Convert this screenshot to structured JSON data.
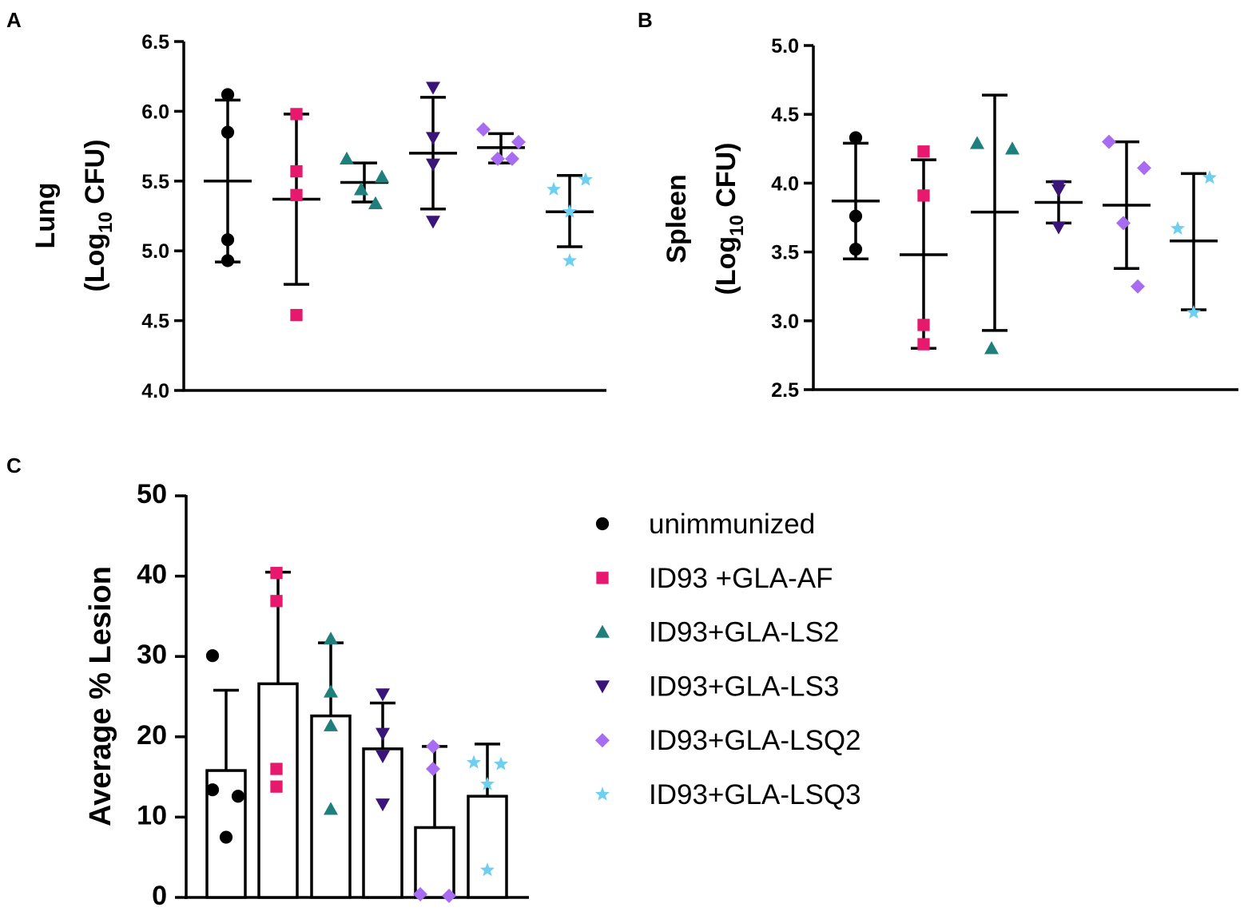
{
  "chart_data": [
    {
      "panel": "A",
      "type": "scatter",
      "ylabel_line1": "Lung",
      "ylabel_line2_prefix": "(Log",
      "ylabel_line2_sub": "10",
      "ylabel_line2_suffix": " CFU)",
      "ylim": [
        4.0,
        6.5
      ],
      "yticks": [
        "4.0",
        "4.5",
        "5.0",
        "5.5",
        "6.0",
        "6.5"
      ],
      "groups": [
        {
          "name": "unimmunized",
          "points": [
            6.12,
            5.85,
            5.08,
            4.93
          ],
          "mean": 5.5,
          "err_low": 4.92,
          "err_high": 6.08
        },
        {
          "name": "ID93 +GLA-AF",
          "points": [
            5.98,
            5.57,
            5.4,
            4.54
          ],
          "mean": 5.37,
          "err_low": 4.76,
          "err_high": 5.98
        },
        {
          "name": "ID93+GLA-LS2",
          "points": [
            5.66,
            5.53,
            5.44,
            5.34
          ],
          "mean": 5.49,
          "err_low": 5.35,
          "err_high": 5.63
        },
        {
          "name": "ID93+GLA-LS3",
          "points": [
            6.17,
            5.81,
            5.62,
            5.21
          ],
          "mean": 5.7,
          "err_low": 5.3,
          "err_high": 6.1
        },
        {
          "name": "ID93+GLA-LSQ2",
          "points": [
            5.87,
            5.78,
            5.66,
            5.66
          ],
          "mean": 5.74,
          "err_low": 5.63,
          "err_high": 5.84
        },
        {
          "name": "ID93+GLA-LSQ3",
          "points": [
            5.51,
            5.44,
            5.28,
            4.93
          ],
          "mean": 5.28,
          "err_low": 5.03,
          "err_high": 5.54
        }
      ]
    },
    {
      "panel": "B",
      "type": "scatter",
      "ylabel_line1": "Spleen",
      "ylabel_line2_prefix": "(Log",
      "ylabel_line2_sub": "10",
      "ylabel_line2_suffix": " CFU)",
      "ylim": [
        2.5,
        5.0
      ],
      "yticks": [
        "2.5",
        "3.0",
        "3.5",
        "4.0",
        "4.5",
        "5.0"
      ],
      "groups": [
        {
          "name": "unimmunized",
          "points": [
            4.33,
            3.76,
            3.52
          ],
          "mean": 3.87,
          "err_low": 3.45,
          "err_high": 4.29
        },
        {
          "name": "ID93 +GLA-AF",
          "points": [
            4.23,
            3.91,
            2.97,
            2.83
          ],
          "mean": 3.48,
          "err_low": 2.8,
          "err_high": 4.17
        },
        {
          "name": "ID93+GLA-LS2",
          "points": [
            4.29,
            4.25,
            2.8
          ],
          "mean": 3.79,
          "err_low": 2.93,
          "err_high": 4.64
        },
        {
          "name": "ID93+GLA-LS3",
          "points": [
            3.98,
            3.98,
            3.95,
            3.68
          ],
          "mean": 3.86,
          "err_low": 3.71,
          "err_high": 4.01
        },
        {
          "name": "ID93+GLA-LSQ2",
          "points": [
            4.3,
            4.11,
            3.71,
            3.25
          ],
          "mean": 3.84,
          "err_low": 3.38,
          "err_high": 4.3
        },
        {
          "name": "ID93+GLA-LSQ3",
          "points": [
            4.04,
            3.67,
            3.06
          ],
          "mean": 3.58,
          "err_low": 3.08,
          "err_high": 4.07
        }
      ]
    },
    {
      "panel": "C",
      "type": "bar",
      "ylabel": "Average % Lesion",
      "ylim": [
        0,
        50
      ],
      "yticks": [
        "0",
        "10",
        "20",
        "30",
        "40",
        "50"
      ],
      "groups": [
        {
          "name": "unimmunized",
          "value": 15.8,
          "err_high": 25.8,
          "points": [
            30.1,
            13.4,
            12.6,
            7.5
          ]
        },
        {
          "name": "ID93 +GLA-AF",
          "value": 26.6,
          "err_high": 40.5,
          "points": [
            40.4,
            36.9,
            16.0,
            13.8
          ]
        },
        {
          "name": "ID93+GLA-LS2",
          "value": 22.6,
          "err_high": 31.7,
          "points": [
            32.2,
            25.6,
            21.4,
            11.0
          ]
        },
        {
          "name": "ID93+GLA-LS3",
          "value": 18.5,
          "err_high": 24.2,
          "points": [
            25.3,
            20.4,
            17.6,
            11.6
          ]
        },
        {
          "name": "ID93+GLA-LSQ2",
          "value": 8.7,
          "err_high": 18.8,
          "points": [
            18.8,
            16.0,
            0.4,
            0.2
          ]
        },
        {
          "name": "ID93+GLA-LSQ3",
          "value": 12.6,
          "err_high": 19.1,
          "points": [
            16.8,
            16.6,
            14.1,
            3.4
          ]
        }
      ]
    }
  ],
  "legend": [
    {
      "label": "unimmunized",
      "marker": "circle",
      "color": "#000000"
    },
    {
      "label": "ID93 +GLA-AF",
      "marker": "square",
      "color": "#E6196D"
    },
    {
      "label": "ID93+GLA-LS2",
      "marker": "triangle-up",
      "color": "#1E7F7D"
    },
    {
      "label": "ID93+GLA-LS3",
      "marker": "triangle-down",
      "color": "#3A1578"
    },
    {
      "label": "ID93+GLA-LSQ2",
      "marker": "diamond",
      "color": "#A86CF0"
    },
    {
      "label": "ID93+GLA-LSQ3",
      "marker": "star",
      "color": "#6ECFF0"
    }
  ]
}
